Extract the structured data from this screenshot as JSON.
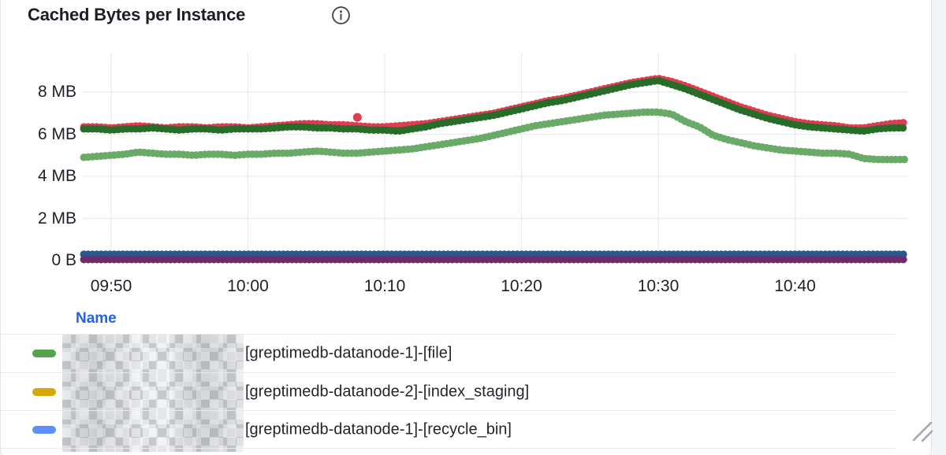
{
  "panel": {
    "title": "Cached Bytes per Instance",
    "info_icon": "info-circle-icon"
  },
  "chart_data": {
    "type": "scatter",
    "title": "Cached Bytes per Instance",
    "grid": true,
    "x_axis": {
      "tick_labels": [
        "09:50",
        "10:00",
        "10:10",
        "10:20",
        "10:30",
        "10:40"
      ],
      "tick_minutes": [
        2,
        12,
        22,
        32,
        42,
        52
      ],
      "start_time": "09:48",
      "end_time": "10:48",
      "total_minutes": 60
    },
    "y_axis": {
      "tick_labels": [
        "8 MB",
        "6 MB",
        "4 MB",
        "2 MB",
        "0 B"
      ],
      "tick_values": [
        8,
        6,
        4,
        2,
        0
      ],
      "unit": "MB",
      "ylim": [
        0,
        9.8
      ]
    },
    "series": [
      {
        "name": "red-series",
        "color": "#de3d51",
        "values": [
          6.35,
          6.35,
          6.3,
          6.35,
          6.4,
          6.35,
          6.3,
          6.35,
          6.35,
          6.3,
          6.35,
          6.35,
          6.3,
          6.35,
          6.4,
          6.45,
          6.5,
          6.5,
          6.45,
          6.45,
          6.4,
          6.35,
          6.35,
          6.4,
          6.45,
          6.5,
          6.6,
          6.7,
          6.8,
          6.9,
          7.0,
          7.15,
          7.3,
          7.45,
          7.6,
          7.7,
          7.85,
          8.0,
          8.15,
          8.3,
          8.45,
          8.55,
          8.65,
          8.5,
          8.3,
          8.05,
          7.8,
          7.55,
          7.3,
          7.1,
          6.9,
          6.75,
          6.6,
          6.5,
          6.45,
          6.4,
          6.3,
          6.3,
          6.4,
          6.5,
          6.55
        ]
      },
      {
        "name": "dark-green-series",
        "color": "#286c2a",
        "values": [
          6.25,
          6.25,
          6.2,
          6.25,
          6.25,
          6.3,
          6.25,
          6.2,
          6.25,
          6.25,
          6.2,
          6.25,
          6.25,
          6.25,
          6.3,
          6.35,
          6.35,
          6.3,
          6.3,
          6.25,
          6.25,
          6.2,
          6.2,
          6.15,
          6.25,
          6.35,
          6.5,
          6.6,
          6.7,
          6.8,
          6.9,
          7.05,
          7.2,
          7.35,
          7.5,
          7.6,
          7.75,
          7.9,
          8.05,
          8.2,
          8.35,
          8.45,
          8.55,
          8.35,
          8.15,
          7.9,
          7.65,
          7.4,
          7.15,
          6.95,
          6.75,
          6.6,
          6.45,
          6.35,
          6.3,
          6.25,
          6.2,
          6.15,
          6.25,
          6.3,
          6.3
        ]
      },
      {
        "name": "light-green-series",
        "color": "#69aa69",
        "values": [
          4.9,
          4.95,
          5.0,
          5.05,
          5.15,
          5.1,
          5.05,
          5.05,
          5.0,
          5.05,
          5.05,
          5.0,
          5.05,
          5.05,
          5.1,
          5.1,
          5.15,
          5.2,
          5.15,
          5.1,
          5.1,
          5.15,
          5.2,
          5.25,
          5.3,
          5.4,
          5.5,
          5.6,
          5.7,
          5.8,
          5.95,
          6.1,
          6.25,
          6.4,
          6.5,
          6.6,
          6.7,
          6.8,
          6.9,
          6.95,
          7.0,
          7.05,
          7.05,
          6.95,
          6.6,
          6.35,
          5.95,
          5.75,
          5.6,
          5.45,
          5.35,
          5.25,
          5.2,
          5.15,
          5.1,
          5.1,
          5.05,
          4.85,
          4.8,
          4.8,
          4.8
        ]
      },
      {
        "name": "navy-series",
        "color": "#265a8e",
        "values": [
          0.3,
          0.3
        ]
      },
      {
        "name": "purple-series",
        "color": "#6e2a6c",
        "values": [
          0.05,
          0.05
        ]
      }
    ],
    "outliers": [
      {
        "series": "red-series",
        "minute": 20,
        "value": 6.8
      }
    ]
  },
  "legend": {
    "header": "Name",
    "rows": [
      {
        "swatch_color": "#55a34c",
        "label": "[greptimedb-datanode-1]-[file]"
      },
      {
        "swatch_color": "#d9a50a",
        "label": "[greptimedb-datanode-2]-[index_staging]"
      },
      {
        "swatch_color": "#5b8ff9",
        "label": "[greptimedb-datanode-1]-[recycle_bin]"
      },
      {
        "swatch_color": "",
        "label": ""
      }
    ]
  },
  "colors": {
    "grid_line": "#e9eaec",
    "axis_text": "#1d2127",
    "legend_header_blue": "#2363e1",
    "card_border": "#e1e3e6",
    "page_background": "#f3f4f5"
  }
}
